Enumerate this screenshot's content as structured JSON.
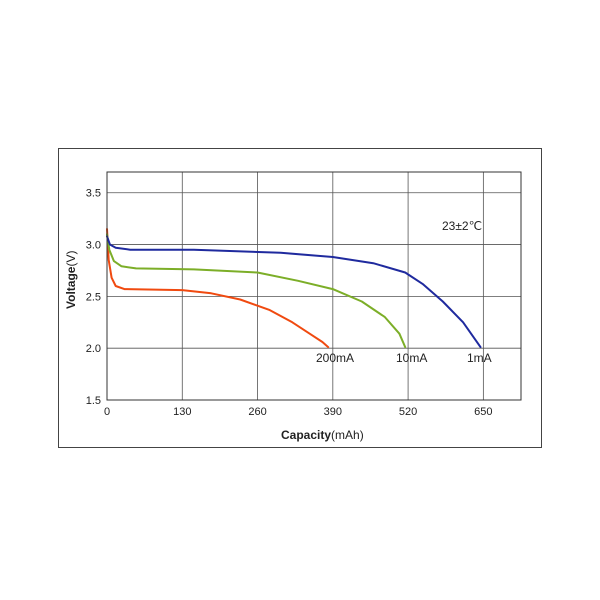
{
  "chart_data": {
    "type": "line",
    "title": "",
    "xlabel_bold": "Capacity",
    "xlabel_unit": "(mAh)",
    "ylabel_bold": "Voltage",
    "ylabel_unit": "(V)",
    "xlim": [
      0,
      715
    ],
    "ylim": [
      1.5,
      3.7
    ],
    "x_ticks": [
      0,
      130,
      260,
      390,
      520,
      650
    ],
    "y_ticks": [
      1.5,
      2.0,
      2.5,
      3.0,
      3.5
    ],
    "x_tick_labels": [
      "0",
      "130",
      "260",
      "390",
      "520",
      "650"
    ],
    "y_tick_labels": [
      "1.5",
      "2.0",
      "2.5",
      "3.0",
      "3.5"
    ],
    "grid": true,
    "annotation": "23±2℃",
    "series": [
      {
        "name": "200mA",
        "color": "#f04a10",
        "points": [
          [
            0,
            3.15
          ],
          [
            3,
            2.85
          ],
          [
            8,
            2.68
          ],
          [
            15,
            2.6
          ],
          [
            30,
            2.57
          ],
          [
            130,
            2.56
          ],
          [
            180,
            2.53
          ],
          [
            230,
            2.47
          ],
          [
            280,
            2.37
          ],
          [
            320,
            2.25
          ],
          [
            350,
            2.14
          ],
          [
            372,
            2.06
          ],
          [
            382,
            2.01
          ]
        ]
      },
      {
        "name": "10mA",
        "color": "#7cae28",
        "points": [
          [
            0,
            3.1
          ],
          [
            4,
            2.95
          ],
          [
            12,
            2.84
          ],
          [
            25,
            2.79
          ],
          [
            50,
            2.77
          ],
          [
            150,
            2.76
          ],
          [
            260,
            2.73
          ],
          [
            330,
            2.65
          ],
          [
            390,
            2.57
          ],
          [
            440,
            2.45
          ],
          [
            480,
            2.3
          ],
          [
            505,
            2.14
          ],
          [
            515,
            2.01
          ]
        ]
      },
      {
        "name": "1mA",
        "color": "#1f2a9e",
        "points": [
          [
            0,
            3.08
          ],
          [
            5,
            3.0
          ],
          [
            15,
            2.97
          ],
          [
            40,
            2.95
          ],
          [
            150,
            2.95
          ],
          [
            300,
            2.92
          ],
          [
            390,
            2.88
          ],
          [
            460,
            2.82
          ],
          [
            515,
            2.73
          ],
          [
            545,
            2.62
          ],
          [
            580,
            2.45
          ],
          [
            615,
            2.25
          ],
          [
            645,
            2.01
          ]
        ]
      }
    ]
  }
}
